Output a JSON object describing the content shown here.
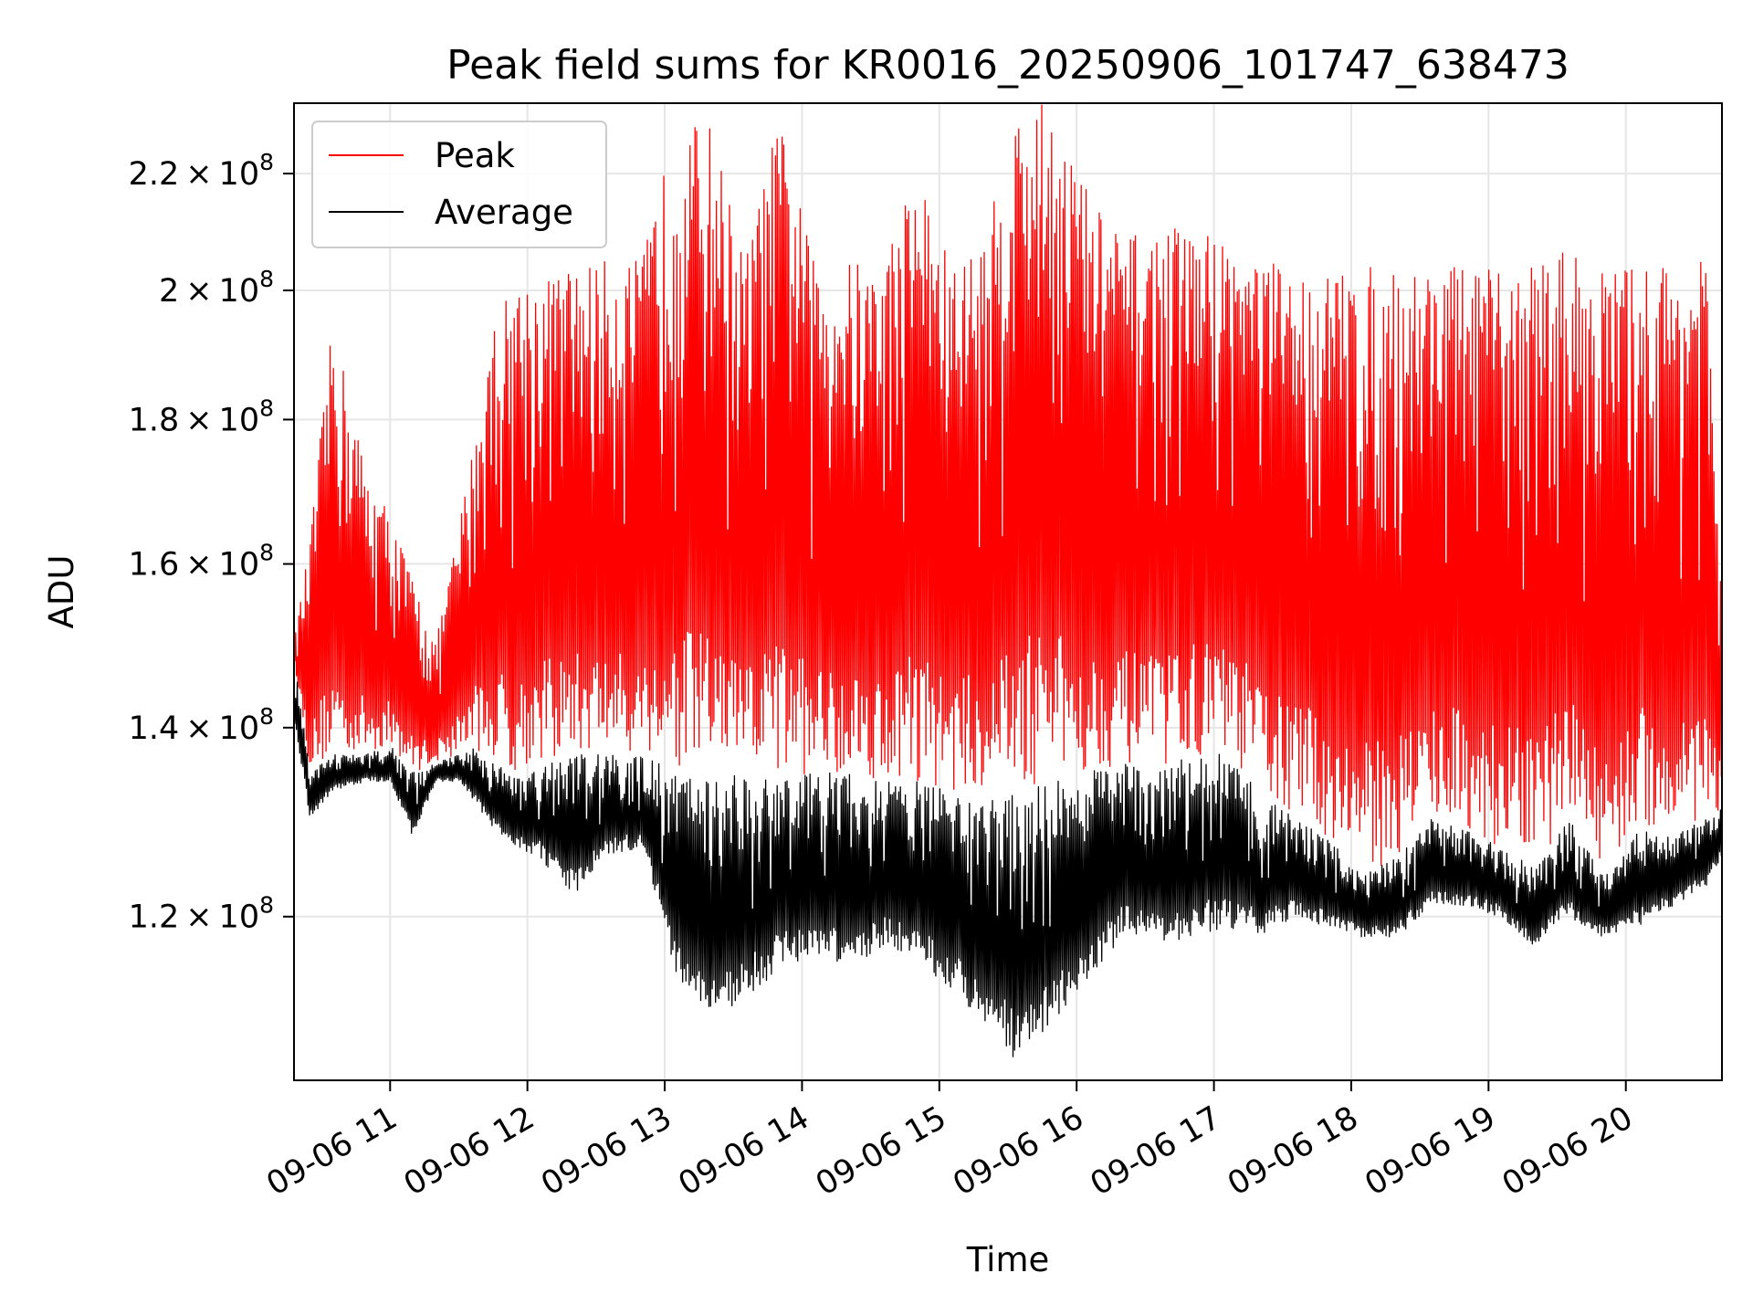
{
  "chart_data": {
    "type": "line",
    "title": "Peak field sums for KR0016_20250906_101747_638473",
    "xlabel": "Time",
    "ylabel": "ADU",
    "x_range": [
      "2025-09-06 10:18",
      "2025-09-06 20:42"
    ],
    "y_range": [
      105000000,
      233000000
    ],
    "y_scale": "log",
    "grid": true,
    "legend": {
      "placement": "top-left",
      "entries": [
        {
          "label": "Peak",
          "color": "#ff0000"
        },
        {
          "label": "Average",
          "color": "#000000"
        }
      ]
    },
    "x_ticks": [
      {
        "value": "2025-09-06 11:00",
        "label": "09-06 11"
      },
      {
        "value": "2025-09-06 12:00",
        "label": "09-06 12"
      },
      {
        "value": "2025-09-06 13:00",
        "label": "09-06 13"
      },
      {
        "value": "2025-09-06 14:00",
        "label": "09-06 14"
      },
      {
        "value": "2025-09-06 15:00",
        "label": "09-06 15"
      },
      {
        "value": "2025-09-06 16:00",
        "label": "09-06 16"
      },
      {
        "value": "2025-09-06 17:00",
        "label": "09-06 17"
      },
      {
        "value": "2025-09-06 18:00",
        "label": "09-06 18"
      },
      {
        "value": "2025-09-06 19:00",
        "label": "09-06 19"
      },
      {
        "value": "2025-09-06 20:00",
        "label": "09-06 20"
      }
    ],
    "y_ticks": [
      {
        "value": 120000000,
        "mantissa": "1.2",
        "exponent": "8"
      },
      {
        "value": 140000000,
        "mantissa": "1.4",
        "exponent": "8"
      },
      {
        "value": 160000000,
        "mantissa": "1.6",
        "exponent": "8"
      },
      {
        "value": 180000000,
        "mantissa": "1.8",
        "exponent": "8"
      },
      {
        "value": 200000000,
        "mantissa": "2",
        "exponent": "8"
      },
      {
        "value": 220000000,
        "mantissa": "2.2",
        "exponent": "8"
      }
    ],
    "series": [
      {
        "name": "Peak",
        "color": "#ff0000",
        "x": [
          "2025-09-06 10:18",
          "2025-09-06 10:25",
          "2025-09-06 10:35",
          "2025-09-06 10:50",
          "2025-09-06 11:00",
          "2025-09-06 11:10",
          "2025-09-06 11:20",
          "2025-09-06 11:30",
          "2025-09-06 11:36",
          "2025-09-06 11:45",
          "2025-09-06 11:55",
          "2025-09-06 12:05",
          "2025-09-06 12:20",
          "2025-09-06 12:35",
          "2025-09-06 12:50",
          "2025-09-06 13:05",
          "2025-09-06 13:20",
          "2025-09-06 13:35",
          "2025-09-06 13:50",
          "2025-09-06 14:05",
          "2025-09-06 14:20",
          "2025-09-06 14:35",
          "2025-09-06 14:50",
          "2025-09-06 15:05",
          "2025-09-06 15:20",
          "2025-09-06 15:35",
          "2025-09-06 15:50",
          "2025-09-06 16:05",
          "2025-09-06 16:20",
          "2025-09-06 16:35",
          "2025-09-06 16:50",
          "2025-09-06 17:05",
          "2025-09-06 17:20",
          "2025-09-06 17:35",
          "2025-09-06 17:50",
          "2025-09-06 18:05",
          "2025-09-06 18:20",
          "2025-09-06 18:35",
          "2025-09-06 18:50",
          "2025-09-06 19:05",
          "2025-09-06 19:20",
          "2025-09-06 19:35",
          "2025-09-06 19:50",
          "2025-09-06 20:05",
          "2025-09-06 20:20",
          "2025-09-06 20:35",
          "2025-09-06 20:42"
        ],
        "min": [
          148000000,
          135000000,
          137000000,
          137000000,
          138000000,
          135000000,
          136000000,
          137000000,
          138000000,
          136000000,
          135000000,
          136000000,
          137000000,
          137000000,
          137000000,
          135000000,
          135000000,
          135000000,
          134000000,
          135000000,
          135000000,
          134000000,
          134000000,
          133000000,
          133000000,
          133000000,
          134000000,
          135000000,
          136000000,
          135000000,
          137000000,
          137000000,
          133000000,
          130000000,
          128000000,
          124000000,
          126000000,
          130000000,
          129000000,
          127000000,
          125000000,
          130000000,
          124000000,
          129000000,
          128000000,
          130000000,
          131000000
        ],
        "max": [
          150000000,
          163000000,
          195000000,
          172000000,
          167000000,
          158000000,
          150000000,
          165000000,
          176000000,
          195000000,
          202000000,
          202000000,
          204000000,
          205000000,
          205000000,
          229000000,
          229000000,
          205000000,
          230000000,
          205000000,
          205000000,
          204000000,
          222000000,
          204000000,
          209000000,
          233000000,
          233000000,
          217000000,
          209000000,
          210000000,
          211000000,
          209000000,
          206000000,
          203000000,
          203000000,
          204000000,
          203000000,
          205000000,
          204000000,
          203000000,
          205000000,
          207000000,
          204000000,
          204000000,
          205000000,
          205000000,
          154000000
        ]
      },
      {
        "name": "Average",
        "color": "#000000",
        "x": [
          "2025-09-06 10:18",
          "2025-09-06 10:25",
          "2025-09-06 10:35",
          "2025-09-06 10:50",
          "2025-09-06 11:00",
          "2025-09-06 11:10",
          "2025-09-06 11:20",
          "2025-09-06 11:30",
          "2025-09-06 11:36",
          "2025-09-06 11:45",
          "2025-09-06 11:55",
          "2025-09-06 12:05",
          "2025-09-06 12:20",
          "2025-09-06 12:35",
          "2025-09-06 12:50",
          "2025-09-06 13:05",
          "2025-09-06 13:20",
          "2025-09-06 13:35",
          "2025-09-06 13:50",
          "2025-09-06 14:05",
          "2025-09-06 14:20",
          "2025-09-06 14:35",
          "2025-09-06 14:50",
          "2025-09-06 15:05",
          "2025-09-06 15:20",
          "2025-09-06 15:35",
          "2025-09-06 15:50",
          "2025-09-06 16:05",
          "2025-09-06 16:20",
          "2025-09-06 16:35",
          "2025-09-06 16:50",
          "2025-09-06 17:05",
          "2025-09-06 17:20",
          "2025-09-06 17:35",
          "2025-09-06 17:50",
          "2025-09-06 18:05",
          "2025-09-06 18:20",
          "2025-09-06 18:35",
          "2025-09-06 18:50",
          "2025-09-06 19:05",
          "2025-09-06 19:20",
          "2025-09-06 19:35",
          "2025-09-06 19:50",
          "2025-09-06 20:05",
          "2025-09-06 20:20",
          "2025-09-06 20:35",
          "2025-09-06 20:42"
        ],
        "min": [
          141000000,
          130000000,
          133000000,
          134000000,
          134000000,
          128000000,
          134000000,
          134000000,
          132000000,
          129000000,
          127000000,
          126000000,
          122000000,
          126000000,
          127000000,
          114000000,
          110000000,
          112000000,
          115000000,
          116000000,
          115000000,
          117000000,
          116000000,
          113000000,
          110000000,
          106000000,
          110000000,
          114000000,
          118000000,
          117000000,
          118000000,
          119000000,
          118000000,
          120000000,
          119000000,
          118000000,
          118000000,
          121000000,
          121000000,
          120000000,
          117000000,
          120000000,
          118000000,
          119000000,
          121000000,
          123000000,
          126000000
        ],
        "max": [
          148000000,
          135000000,
          137000000,
          137000000,
          138000000,
          135000000,
          136000000,
          137000000,
          138000000,
          136000000,
          135000000,
          136000000,
          137000000,
          137000000,
          137000000,
          135000000,
          135000000,
          135000000,
          134000000,
          135000000,
          135000000,
          134000000,
          134000000,
          133000000,
          133000000,
          133000000,
          134000000,
          135000000,
          136000000,
          135000000,
          137000000,
          137000000,
          133000000,
          130000000,
          128000000,
          124000000,
          126000000,
          130000000,
          129000000,
          127000000,
          125000000,
          130000000,
          124000000,
          129000000,
          128000000,
          130000000,
          131000000
        ]
      }
    ]
  }
}
